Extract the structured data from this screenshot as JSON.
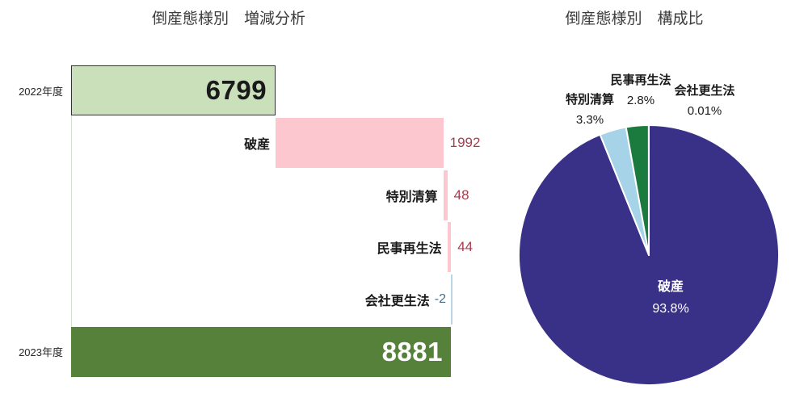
{
  "chart_data": [
    {
      "type": "bar",
      "subtype": "waterfall",
      "orientation": "horizontal",
      "title": "倒産態様別　増減分析",
      "categories": [
        "2022年度",
        "破産",
        "特別清算",
        "民事再生法",
        "会社更生法",
        "2023年度"
      ],
      "values": [
        6799,
        1992,
        48,
        44,
        -2,
        8881
      ],
      "value_labels": [
        "6799",
        "1992",
        "48",
        "44",
        "-2",
        "8881"
      ],
      "roles": [
        "total",
        "increase",
        "increase",
        "increase",
        "decrease",
        "total"
      ],
      "xlim": [
        4370,
        8883
      ],
      "grid": false,
      "legend": "none"
    },
    {
      "type": "pie",
      "title": "倒産態様別　構成比",
      "labels": [
        "破産",
        "特別清算",
        "民事再生法",
        "会社更生法"
      ],
      "values": [
        93.8,
        3.3,
        2.8,
        0.01
      ],
      "unit": "%",
      "pct_labels": [
        "93.8%",
        "3.3%",
        "2.8%",
        "0.01%"
      ],
      "slice_colors": [
        "#393188",
        "#A6D3E8",
        "#1B7A3E",
        "#1B7A3E"
      ],
      "start_angle_deg": 0,
      "direction": "clockwise",
      "legend": "none",
      "label_positions": [
        "inside",
        "outside",
        "outside",
        "outside"
      ]
    }
  ],
  "colors": {
    "bar_total_start_fill": "#C9E0BB",
    "bar_total_start_border": "#333333",
    "bar_increase_fill": "#FCC7CE",
    "bar_decrease_fill": "#B9D5E6",
    "bar_total_end_fill": "#56813B",
    "value_increase_text": "#A83B4D",
    "value_decrease_text": "#4A6C84",
    "total_start_text": "#1A1A1A",
    "total_end_text": "#FFFFFF",
    "category_text": "#1A1A1A",
    "axis_line": "#D4E0CB",
    "title_text": "#3C3C3C",
    "pie_inside_text": "#FFFFFF",
    "pie_outside_text": "#1A1A1A",
    "background": "#FFFFFF"
  }
}
